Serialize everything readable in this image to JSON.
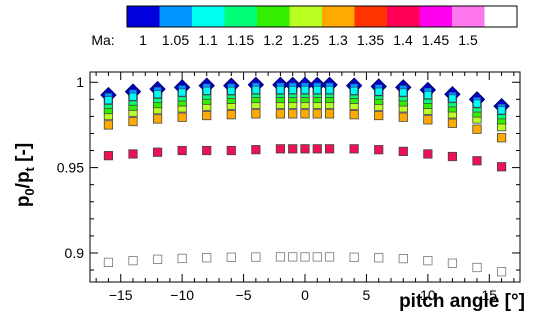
{
  "chart_data": {
    "type": "scatter",
    "xlabel": "pitch angle [°]",
    "ylabel": {
      "main": "p",
      "sub1": "0",
      "mid": "/p",
      "sub2": "t",
      "suffix": " [-]"
    },
    "xlim": [
      -17.5,
      17.5
    ],
    "ylim": [
      0.883,
      1.006
    ],
    "xticks": [
      -15,
      -10,
      -5,
      0,
      5,
      10,
      15
    ],
    "yticks": [
      {
        "value": 0.9,
        "label": "0.9"
      },
      {
        "value": 0.95,
        "label": "0.95"
      },
      {
        "value": 1.0,
        "label": "1"
      }
    ],
    "grid": false,
    "colorbar": {
      "title": "Ma:",
      "levels": [
        "1",
        "1.05",
        "1.1",
        "1.15",
        "1.2",
        "1.25",
        "1.3",
        "1.35",
        "1.4",
        "1.45",
        "1.5"
      ],
      "colors": [
        "#0000dd",
        "#0096ff",
        "#00ffee",
        "#00ff78",
        "#33ee00",
        "#bbff22",
        "#ffaa00",
        "#ff3300",
        "#ff0055",
        "#ff00ee",
        "#ff77ee",
        "#ffffff"
      ]
    },
    "x": [
      -16,
      -14,
      -12,
      -10,
      -8,
      -6,
      -4,
      -2,
      -1,
      0,
      1,
      2,
      4,
      6,
      8,
      10,
      12,
      14,
      16
    ],
    "series": [
      {
        "mach": 1.0,
        "marker": "diamond",
        "color": "#0000cc",
        "values": [
          0.9925,
          0.9945,
          0.996,
          0.997,
          0.998,
          0.998,
          0.9985,
          0.9985,
          0.9985,
          0.9985,
          0.9985,
          0.9985,
          0.998,
          0.9975,
          0.997,
          0.9955,
          0.993,
          0.99,
          0.986
        ]
      },
      {
        "mach": 1.05,
        "marker": "square",
        "color": "#0096ff",
        "values": [
          0.9915,
          0.9935,
          0.995,
          0.996,
          0.997,
          0.997,
          0.9975,
          0.9975,
          0.9975,
          0.9975,
          0.9975,
          0.9975,
          0.997,
          0.9965,
          0.996,
          0.9945,
          0.992,
          0.989,
          0.985
        ]
      },
      {
        "mach": 1.1,
        "marker": "square",
        "color": "#00ffee",
        "values": [
          0.9895,
          0.9915,
          0.993,
          0.994,
          0.995,
          0.995,
          0.9955,
          0.9955,
          0.9955,
          0.9955,
          0.9955,
          0.9955,
          0.995,
          0.9945,
          0.994,
          0.9925,
          0.9905,
          0.9875,
          0.9835
        ]
      },
      {
        "mach": 1.15,
        "marker": "square",
        "color": "#00ff78",
        "values": [
          0.987,
          0.989,
          0.9905,
          0.9915,
          0.9925,
          0.993,
          0.9935,
          0.9935,
          0.9935,
          0.9935,
          0.9935,
          0.9935,
          0.993,
          0.9925,
          0.9915,
          0.99,
          0.988,
          0.985,
          0.981
        ]
      },
      {
        "mach": 1.2,
        "marker": "square",
        "color": "#33ee00",
        "values": [
          0.984,
          0.986,
          0.9875,
          0.9885,
          0.9895,
          0.99,
          0.9905,
          0.9905,
          0.9905,
          0.9905,
          0.9905,
          0.9905,
          0.99,
          0.9895,
          0.9885,
          0.987,
          0.985,
          0.982,
          0.978
        ]
      },
      {
        "mach": 1.25,
        "marker": "square",
        "color": "#bbff22",
        "values": [
          0.9805,
          0.9825,
          0.984,
          0.985,
          0.986,
          0.9865,
          0.987,
          0.987,
          0.987,
          0.987,
          0.987,
          0.987,
          0.9865,
          0.986,
          0.985,
          0.9835,
          0.9815,
          0.9785,
          0.974
        ]
      },
      {
        "mach": 1.3,
        "marker": "square",
        "color": "#ffaa00",
        "values": [
          0.975,
          0.977,
          0.9785,
          0.9795,
          0.9805,
          0.981,
          0.9815,
          0.9815,
          0.9815,
          0.9815,
          0.9815,
          0.9815,
          0.981,
          0.9805,
          0.9795,
          0.978,
          0.976,
          0.9725,
          0.9675
        ]
      },
      {
        "mach": 1.4,
        "marker": "square",
        "color": "#ee1155",
        "values": [
          0.957,
          0.958,
          0.959,
          0.96,
          0.96,
          0.96,
          0.9605,
          0.961,
          0.961,
          0.961,
          0.961,
          0.961,
          0.961,
          0.9605,
          0.9595,
          0.958,
          0.9565,
          0.954,
          0.9505
        ]
      },
      {
        "mach": 1.5,
        "marker": "square",
        "color": "#ffffff",
        "values": [
          0.8945,
          0.8955,
          0.8963,
          0.8968,
          0.8972,
          0.8975,
          0.8976,
          0.8977,
          0.8977,
          0.8977,
          0.8977,
          0.8977,
          0.8975,
          0.8972,
          0.8967,
          0.8955,
          0.894,
          0.8915,
          0.889
        ]
      }
    ]
  }
}
